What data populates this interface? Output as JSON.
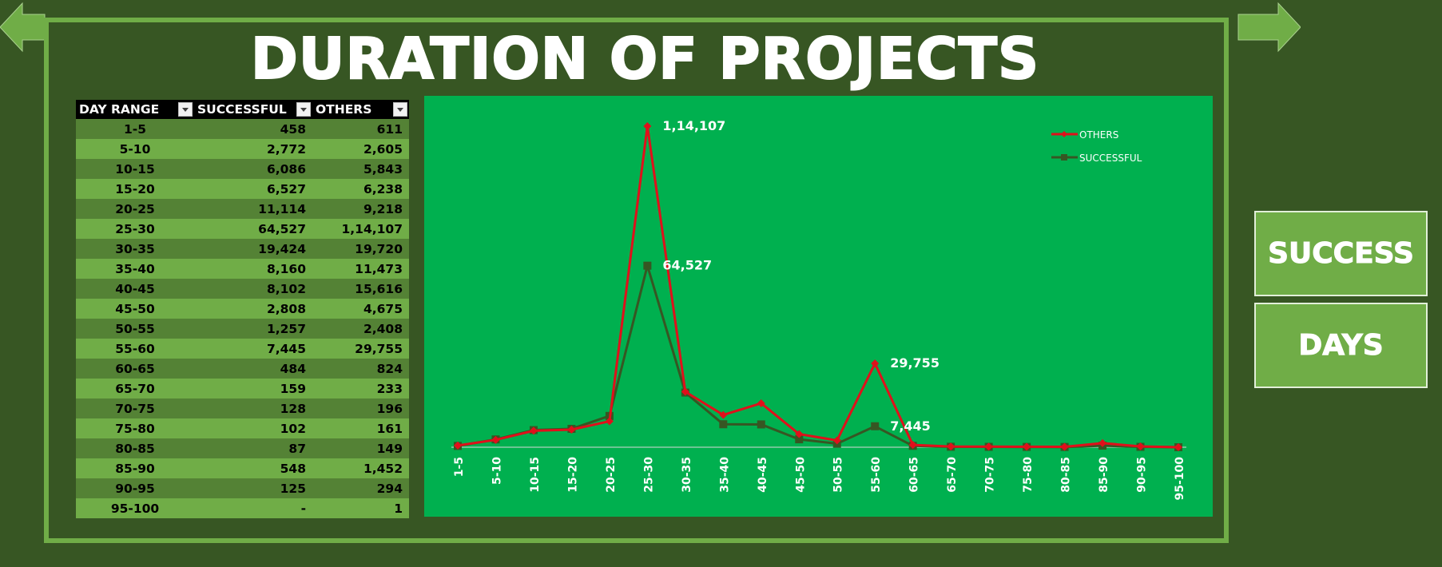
{
  "title": "DURATION OF PROJECTS",
  "buttons": {
    "success": "SUCCESS",
    "days": "DAYS"
  },
  "colors": {
    "background": "#375623",
    "frame": "#70ad47",
    "plot_area": "#00b04f",
    "others_line": "#e0101b",
    "successful_line": "#375623"
  },
  "icons": {
    "back": "arrow-left-icon",
    "forward": "arrow-right-icon",
    "filter": "filter-dropdown-icon"
  },
  "table": {
    "headers": [
      "DAY RANGE",
      "SUCCESSFUL",
      "OTHERS"
    ],
    "rows": [
      [
        "1-5",
        "458",
        "611"
      ],
      [
        "5-10",
        "2,772",
        "2,605"
      ],
      [
        "10-15",
        "6,086",
        "5,843"
      ],
      [
        "15-20",
        "6,527",
        "6,238"
      ],
      [
        "20-25",
        "11,114",
        "9,218"
      ],
      [
        "25-30",
        "64,527",
        "1,14,107"
      ],
      [
        "30-35",
        "19,424",
        "19,720"
      ],
      [
        "35-40",
        "8,160",
        "11,473"
      ],
      [
        "40-45",
        "8,102",
        "15,616"
      ],
      [
        "45-50",
        "2,808",
        "4,675"
      ],
      [
        "50-55",
        "1,257",
        "2,408"
      ],
      [
        "55-60",
        "7,445",
        "29,755"
      ],
      [
        "60-65",
        "484",
        "824"
      ],
      [
        "65-70",
        "159",
        "233"
      ],
      [
        "70-75",
        "128",
        "196"
      ],
      [
        "75-80",
        "102",
        "161"
      ],
      [
        "80-85",
        "87",
        "149"
      ],
      [
        "85-90",
        "548",
        "1,452"
      ],
      [
        "90-95",
        "125",
        "294"
      ],
      [
        "95-100",
        "-",
        "1"
      ]
    ]
  },
  "chart_data": {
    "type": "line",
    "categories": [
      "1-5",
      "5-10",
      "10-15",
      "15-20",
      "20-25",
      "25-30",
      "30-35",
      "35-40",
      "40-45",
      "45-50",
      "50-55",
      "55-60",
      "60-65",
      "65-70",
      "70-75",
      "75-80",
      "80-85",
      "85-90",
      "90-95",
      "95-100"
    ],
    "series": [
      {
        "name": "OTHERS",
        "color": "#e0101b",
        "marker": "diamond",
        "values": [
          611,
          2605,
          5843,
          6238,
          9218,
          114107,
          19720,
          11473,
          15616,
          4675,
          2408,
          29755,
          824,
          233,
          196,
          161,
          149,
          1452,
          294,
          1
        ]
      },
      {
        "name": "SUCCESSFUL",
        "color": "#375623",
        "marker": "square",
        "values": [
          458,
          2772,
          6086,
          6527,
          11114,
          64527,
          19424,
          8160,
          8102,
          2808,
          1257,
          7445,
          484,
          159,
          128,
          102,
          87,
          548,
          125,
          0
        ]
      }
    ],
    "data_labels": [
      {
        "series": "OTHERS",
        "category": "25-30",
        "text": "1,14,107"
      },
      {
        "series": "SUCCESSFUL",
        "category": "25-30",
        "text": "64,527"
      },
      {
        "series": "OTHERS",
        "category": "55-60",
        "text": "29,755"
      },
      {
        "series": "SUCCESSFUL",
        "category": "55-60",
        "text": "7,445"
      }
    ],
    "legend": {
      "position": "top-right",
      "entries": [
        "OTHERS",
        "SUCCESSFUL"
      ]
    },
    "ylim": [
      0,
      114107
    ],
    "grid": false
  }
}
